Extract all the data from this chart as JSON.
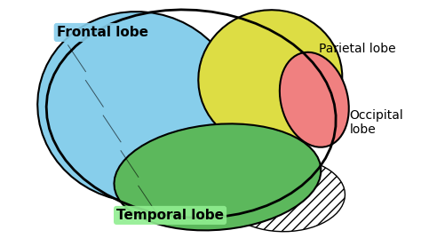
{
  "background_color": "#ffffff",
  "labels": {
    "frontal": "Frontal lobe",
    "parietal": "Parietal lobe",
    "temporal": "Temporal lobe",
    "occipital": "Occipital\nlobe"
  },
  "label_colors": {
    "frontal_bg": "#87CEEB",
    "temporal_bg": "#90EE90",
    "parietal_text": "#000000",
    "occipital_text": "#000000"
  },
  "lobe_colors": {
    "frontal": "#87CEEB",
    "parietal": "#DDDD44",
    "temporal": "#5CB85C",
    "occipital": "#F08080",
    "cerebellum": "#CCCCCC"
  },
  "figsize": [
    4.74,
    2.77
  ],
  "dpi": 100
}
